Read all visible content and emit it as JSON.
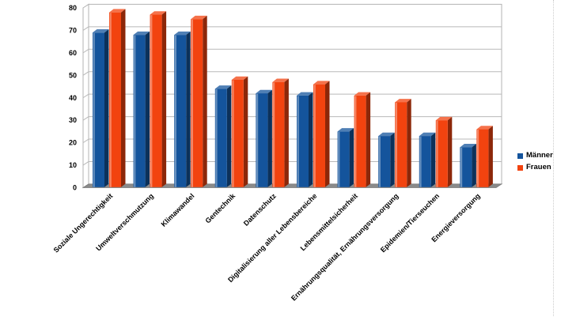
{
  "chart_data": {
    "type": "bar",
    "variant": "3d-column",
    "title": "",
    "categories": [
      "Soziale Ungerechtigkeit",
      "Umweltverschmutzung",
      "Klimawandel",
      "Gentechnik",
      "Datenschutz",
      "Digitalisierung aller Lebensbereiche",
      "Lebensmittelsicherheit",
      "Ernährungsqualität, Ernährungsversorgung",
      "Epidemien/Tierseuchen",
      "Energieversorgung"
    ],
    "series": [
      {
        "name": "Männer",
        "color": "#14549c",
        "values": [
          69,
          68,
          68,
          44,
          42,
          41,
          25,
          23,
          23,
          18
        ]
      },
      {
        "name": "Frauen",
        "color": "#f2430f",
        "values": [
          78,
          77,
          75,
          48,
          47,
          46,
          41,
          38,
          30,
          26
        ]
      }
    ],
    "yticks": [
      0,
      10,
      20,
      30,
      40,
      50,
      60,
      70,
      80
    ],
    "ylim": [
      0,
      80
    ],
    "grid": true,
    "legend_position": "right",
    "axis_label_color": "#000000",
    "gridline_color": "#b9b9b9",
    "wall_border_color": "#b3b3b3",
    "floor_color": "#8a8a8a"
  }
}
